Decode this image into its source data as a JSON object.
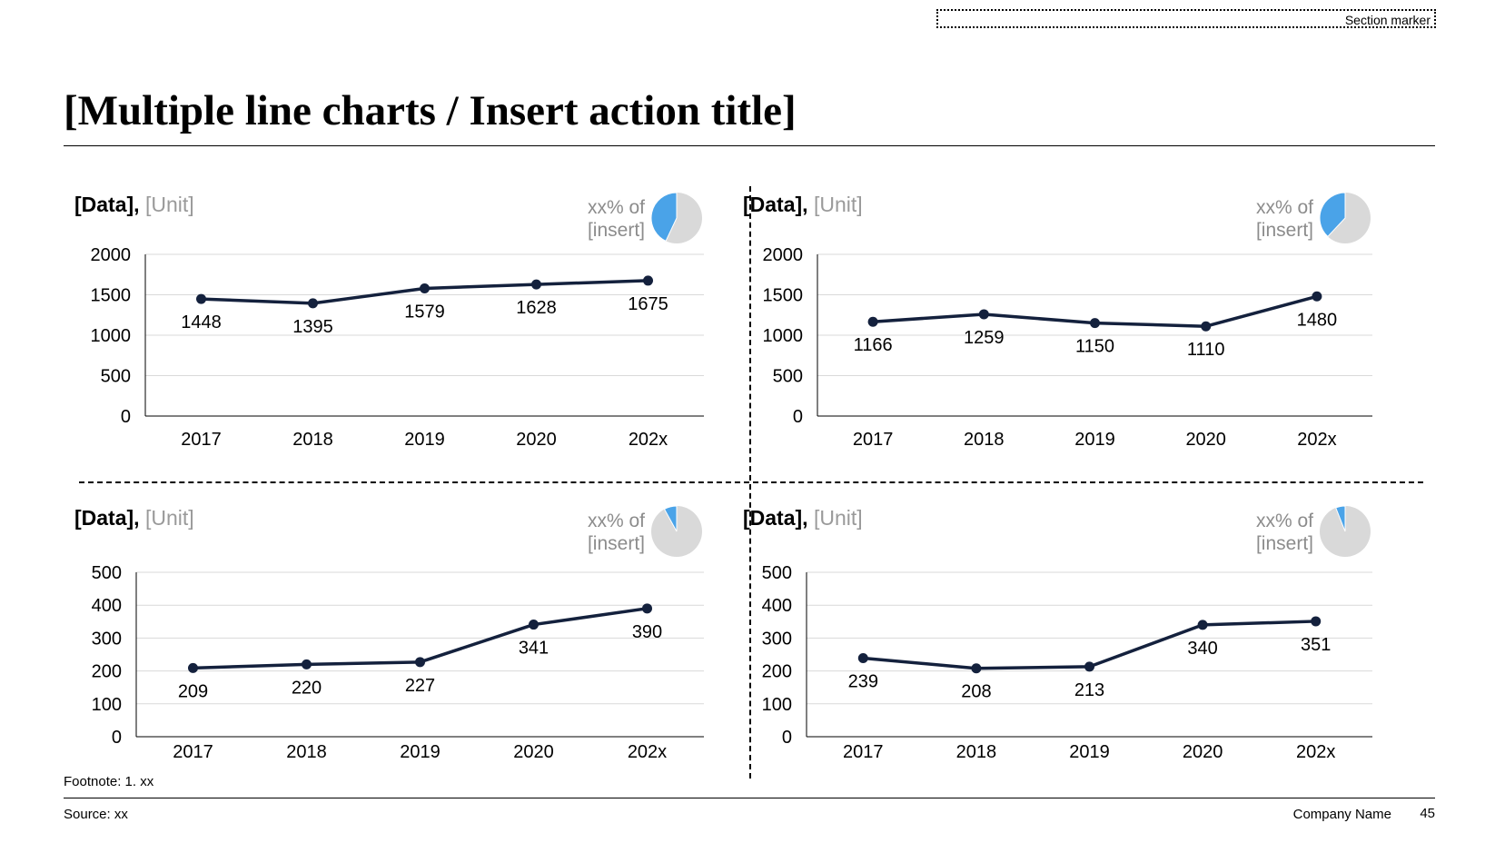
{
  "header": {
    "section_marker": "Section marker",
    "title": "[Multiple line charts / Insert action title]"
  },
  "chart_data": [
    {
      "type": "line",
      "title": "[Data],",
      "unit": "[Unit]",
      "share_label_line1": "xx% of",
      "share_label_line2": "[insert]",
      "share_fraction": 0.43,
      "categories": [
        "2017",
        "2018",
        "2019",
        "2020",
        "202x"
      ],
      "values": [
        1448,
        1395,
        1579,
        1628,
        1675
      ],
      "yticks": [
        "0",
        "500",
        "1000",
        "1500",
        "2000"
      ],
      "ylim": [
        0,
        2000
      ],
      "grid": true,
      "line_color": "#14213d",
      "pie_colors": {
        "share": "#4aa3e8",
        "rest": "#d9d9d9"
      }
    },
    {
      "type": "line",
      "title": "[Data],",
      "unit": "[Unit]",
      "share_label_line1": "xx% of",
      "share_label_line2": "[insert]",
      "share_fraction": 0.38,
      "categories": [
        "2017",
        "2018",
        "2019",
        "2020",
        "202x"
      ],
      "values": [
        1166,
        1259,
        1150,
        1110,
        1480
      ],
      "yticks": [
        "0",
        "500",
        "1000",
        "1500",
        "2000"
      ],
      "ylim": [
        0,
        2000
      ],
      "grid": true,
      "line_color": "#14213d",
      "pie_colors": {
        "share": "#4aa3e8",
        "rest": "#d9d9d9"
      }
    },
    {
      "type": "line",
      "title": "[Data],",
      "unit": "[Unit]",
      "share_label_line1": "xx% of",
      "share_label_line2": "[insert]",
      "share_fraction": 0.08,
      "categories": [
        "2017",
        "2018",
        "2019",
        "2020",
        "202x"
      ],
      "values": [
        209,
        220,
        227,
        341,
        390
      ],
      "yticks": [
        "0",
        "100",
        "200",
        "300",
        "400",
        "500"
      ],
      "ylim": [
        0,
        500
      ],
      "grid": true,
      "line_color": "#14213d",
      "pie_colors": {
        "share": "#4aa3e8",
        "rest": "#d9d9d9"
      }
    },
    {
      "type": "line",
      "title": "[Data],",
      "unit": "[Unit]",
      "share_label_line1": "xx% of",
      "share_label_line2": "[insert]",
      "share_fraction": 0.06,
      "categories": [
        "2017",
        "2018",
        "2019",
        "2020",
        "202x"
      ],
      "values": [
        239,
        208,
        213,
        340,
        351
      ],
      "yticks": [
        "0",
        "100",
        "200",
        "300",
        "400",
        "500"
      ],
      "ylim": [
        0,
        500
      ],
      "grid": true,
      "line_color": "#14213d",
      "pie_colors": {
        "share": "#4aa3e8",
        "rest": "#d9d9d9"
      }
    }
  ],
  "footer": {
    "footnote": "Footnote: 1. xx",
    "source": "Source: xx",
    "company": "Company Name",
    "page_number": "45"
  }
}
